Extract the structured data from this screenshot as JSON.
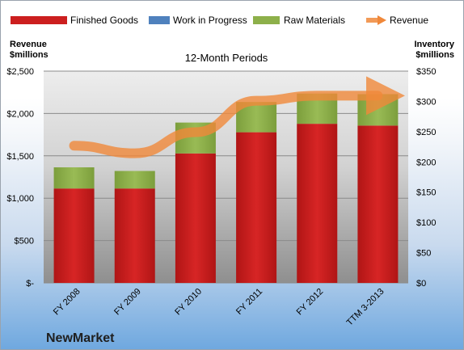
{
  "chart_data": {
    "type": "bar",
    "subtitle": "12-Month Periods",
    "company": "NewMarket",
    "categories": [
      "FY 2008",
      "FY 2009",
      "FY 2010",
      "FY 2011",
      "FY 2012",
      "TTM 3-2013"
    ],
    "series": [
      {
        "name": "Finished Goods",
        "axis": "right",
        "stacked": true,
        "color": "#cc1f1f",
        "values": [
          156,
          156,
          214,
          249,
          263,
          260
        ]
      },
      {
        "name": "Work in Progress",
        "axis": "right",
        "stacked": true,
        "color": "#4f81bd",
        "values": [
          0,
          0,
          0,
          0,
          0,
          0
        ]
      },
      {
        "name": "Raw Materials",
        "axis": "right",
        "stacked": true,
        "color": "#8db04a",
        "values": [
          35,
          29,
          51,
          50,
          50,
          52
        ]
      },
      {
        "name": "Revenue",
        "axis": "left",
        "type": "line",
        "color": "#f0883a",
        "values": [
          1620,
          1530,
          1780,
          2150,
          2210,
          2210
        ]
      }
    ],
    "left_axis": {
      "title_line1": "Revenue",
      "title_line2": "$millions",
      "min": 0,
      "max": 2500,
      "step": 500,
      "tick_labels": [
        "$-",
        "$500",
        "$1,000",
        "$1,500",
        "$2,000",
        "$2,500"
      ]
    },
    "right_axis": {
      "title_line1": "Inventory",
      "title_line2": "$millions",
      "min": 0,
      "max": 350,
      "step": 50,
      "tick_labels": [
        "$0",
        "$50",
        "$100",
        "$150",
        "$200",
        "$250",
        "$300",
        "$350"
      ]
    },
    "legend_position": "top",
    "grid": true
  }
}
